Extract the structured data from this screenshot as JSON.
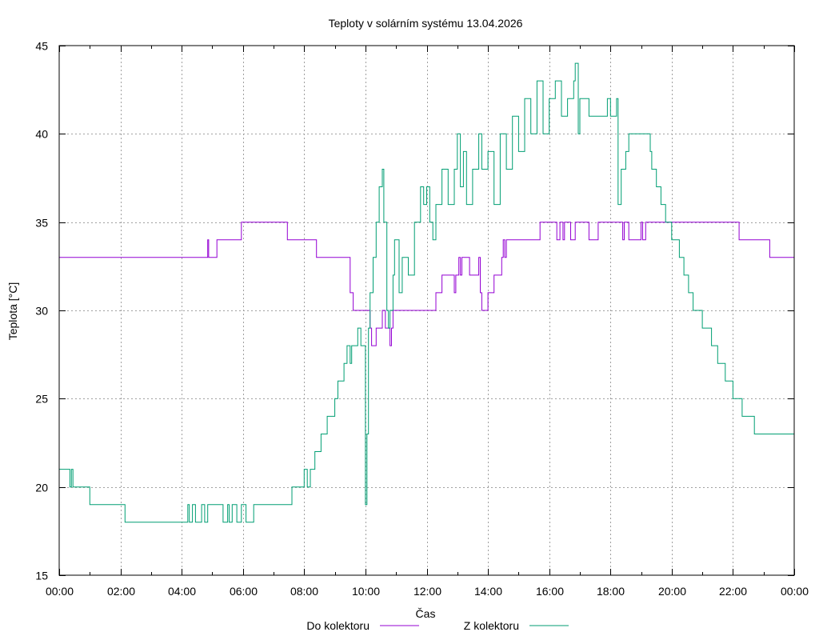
{
  "chart_data": {
    "type": "line",
    "title": "Teploty v solárním systému 13.04.2026",
    "xlabel": "Čas",
    "ylabel": "Teplota [°C]",
    "xlim": [
      0,
      24
    ],
    "ylim": [
      15,
      45
    ],
    "x_ticks": [
      0,
      2,
      4,
      6,
      8,
      10,
      12,
      14,
      16,
      18,
      20,
      22,
      24
    ],
    "x_tick_labels": [
      "00:00",
      "02:00",
      "04:00",
      "06:00",
      "08:00",
      "10:00",
      "12:00",
      "14:00",
      "16:00",
      "18:00",
      "20:00",
      "22:00",
      "00:00"
    ],
    "y_ticks": [
      15,
      20,
      25,
      30,
      35,
      40,
      45
    ],
    "y_tick_labels": [
      "15",
      "20",
      "25",
      "30",
      "35",
      "40",
      "45"
    ],
    "grid": true,
    "legend_position": "bottom",
    "series": [
      {
        "name": "Do kolektoru",
        "color": "#9400d3",
        "step": true,
        "x": [
          0,
          4.85,
          4.88,
          4.9,
          5.15,
          5.95,
          7.45,
          8.4,
          9.5,
          9.6,
          9.75,
          10.15,
          10.2,
          10.35,
          10.4,
          10.55,
          10.65,
          10.8,
          10.85,
          10.9,
          11.2,
          12.3,
          12.5,
          12.9,
          12.95,
          13.0,
          13.05,
          13.1,
          13.15,
          13.2,
          13.4,
          13.7,
          13.75,
          13.8,
          14.0,
          14.2,
          14.45,
          14.5,
          14.55,
          14.6,
          15.0,
          15.5,
          15.7,
          16.15,
          16.25,
          16.35,
          16.45,
          16.5,
          16.7,
          16.85,
          17.3,
          17.6,
          18.4,
          18.45,
          18.6,
          19.0,
          19.05,
          19.15,
          19.2,
          20.3,
          21.5,
          22.2,
          23.2,
          24
        ],
        "values": [
          33,
          34,
          33,
          33,
          34,
          35,
          34,
          33,
          31,
          30,
          30,
          29,
          28,
          29,
          29,
          30,
          29,
          28,
          29,
          30,
          30,
          31,
          32,
          31,
          32,
          32,
          33,
          32,
          33,
          33,
          32,
          33,
          31,
          30,
          31,
          32,
          33,
          34,
          33,
          34,
          34,
          34,
          35,
          35,
          34,
          35,
          34,
          35,
          34,
          35,
          34,
          35,
          34,
          35,
          34,
          35,
          34,
          35,
          35,
          35,
          35,
          34,
          33,
          33
        ]
      },
      {
        "name": "Z kolektoru",
        "color": "#009e73",
        "step": true,
        "x": [
          0,
          0.35,
          0.4,
          0.45,
          1.0,
          2.15,
          2.25,
          4.2,
          4.25,
          4.35,
          4.45,
          4.65,
          4.75,
          4.85,
          5.35,
          5.5,
          5.55,
          5.65,
          5.8,
          5.95,
          6.1,
          6.35,
          7.6,
          8.0,
          8.1,
          8.2,
          8.35,
          8.55,
          8.75,
          9.0,
          9.1,
          9.3,
          9.4,
          9.5,
          9.55,
          9.75,
          9.85,
          10.0,
          10.05,
          10.1,
          10.15,
          10.25,
          10.35,
          10.45,
          10.55,
          10.6,
          10.7,
          10.75,
          10.8,
          10.9,
          10.95,
          11.1,
          11.2,
          11.4,
          11.6,
          11.8,
          11.9,
          12.0,
          12.1,
          12.2,
          12.3,
          12.5,
          12.7,
          12.9,
          13.0,
          13.1,
          13.2,
          13.3,
          13.5,
          13.7,
          13.8,
          14.0,
          14.2,
          14.4,
          14.6,
          14.8,
          15.0,
          15.2,
          15.4,
          15.6,
          15.8,
          16.0,
          16.2,
          16.4,
          16.6,
          16.8,
          16.85,
          16.95,
          17.0,
          17.3,
          17.7,
          17.9,
          18.0,
          18.2,
          18.25,
          18.35,
          18.5,
          18.6,
          18.7,
          19.3,
          19.35,
          19.5,
          19.65,
          19.8,
          20.0,
          20.25,
          20.4,
          20.55,
          20.7,
          21.0,
          21.3,
          21.5,
          21.75,
          22.0,
          22.3,
          22.5,
          22.7,
          22.9,
          23.3,
          23.5,
          24
        ],
        "values": [
          21,
          20,
          21,
          20,
          19,
          18,
          18,
          19,
          18,
          19,
          18,
          19,
          18,
          19,
          18,
          19,
          18,
          19,
          18,
          19,
          18,
          19,
          20,
          21,
          20,
          21,
          22,
          23,
          24,
          25,
          26,
          27,
          28,
          27,
          28,
          29,
          28,
          19,
          23,
          29,
          31,
          33,
          35,
          37,
          38,
          35,
          30,
          29,
          30,
          32,
          34,
          31,
          33,
          32,
          35,
          37,
          36,
          37,
          35,
          34,
          36,
          38,
          36,
          38,
          40,
          37,
          39,
          36,
          38,
          40,
          38,
          39,
          36,
          40,
          38,
          41,
          39,
          42,
          40,
          43,
          40,
          42,
          43,
          41,
          42,
          43,
          44,
          40,
          42,
          41,
          41,
          42,
          41,
          42,
          36,
          38,
          39,
          40,
          40,
          39,
          38,
          37,
          36,
          35,
          34,
          33,
          32,
          31,
          30,
          29,
          28,
          27,
          26,
          25,
          24,
          24,
          23,
          23,
          23,
          23,
          23
        ]
      }
    ]
  }
}
